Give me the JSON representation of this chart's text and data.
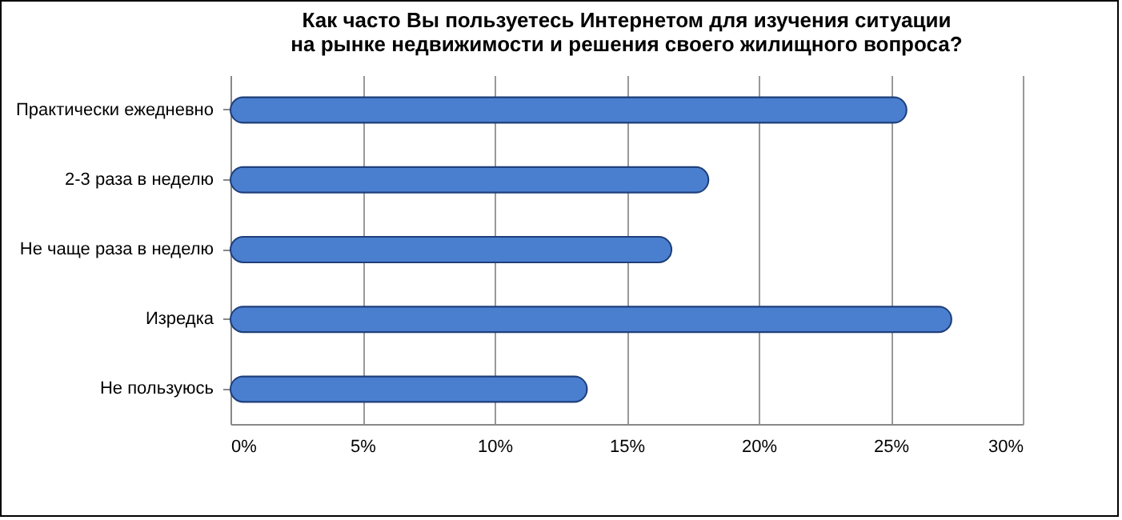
{
  "chart_data": {
    "type": "bar",
    "orientation": "horizontal",
    "title": [
      "Как часто Вы пользуетесь Интернетом для изучения ситуации",
      "на рынке недвижимости и решения своего жилищного вопроса?"
    ],
    "categories": [
      "Практически ежедневно",
      "2-3 раза в неделю",
      "Не чаще раза в неделю",
      "Изредка",
      "Не пользуюсь"
    ],
    "values": [
      25.6,
      18.1,
      16.7,
      27.3,
      13.5
    ],
    "color": "#4a7fd0",
    "xlim": [
      0,
      30
    ],
    "xticks": [
      {
        "value": 0,
        "label": "0%"
      },
      {
        "value": 5,
        "label": "5%"
      },
      {
        "value": 10,
        "label": "10%"
      },
      {
        "value": 15,
        "label": "15%"
      },
      {
        "value": 20,
        "label": "20%"
      },
      {
        "value": 25,
        "label": "25%"
      },
      {
        "value": 30,
        "label": "30%"
      }
    ],
    "grid": "x"
  }
}
